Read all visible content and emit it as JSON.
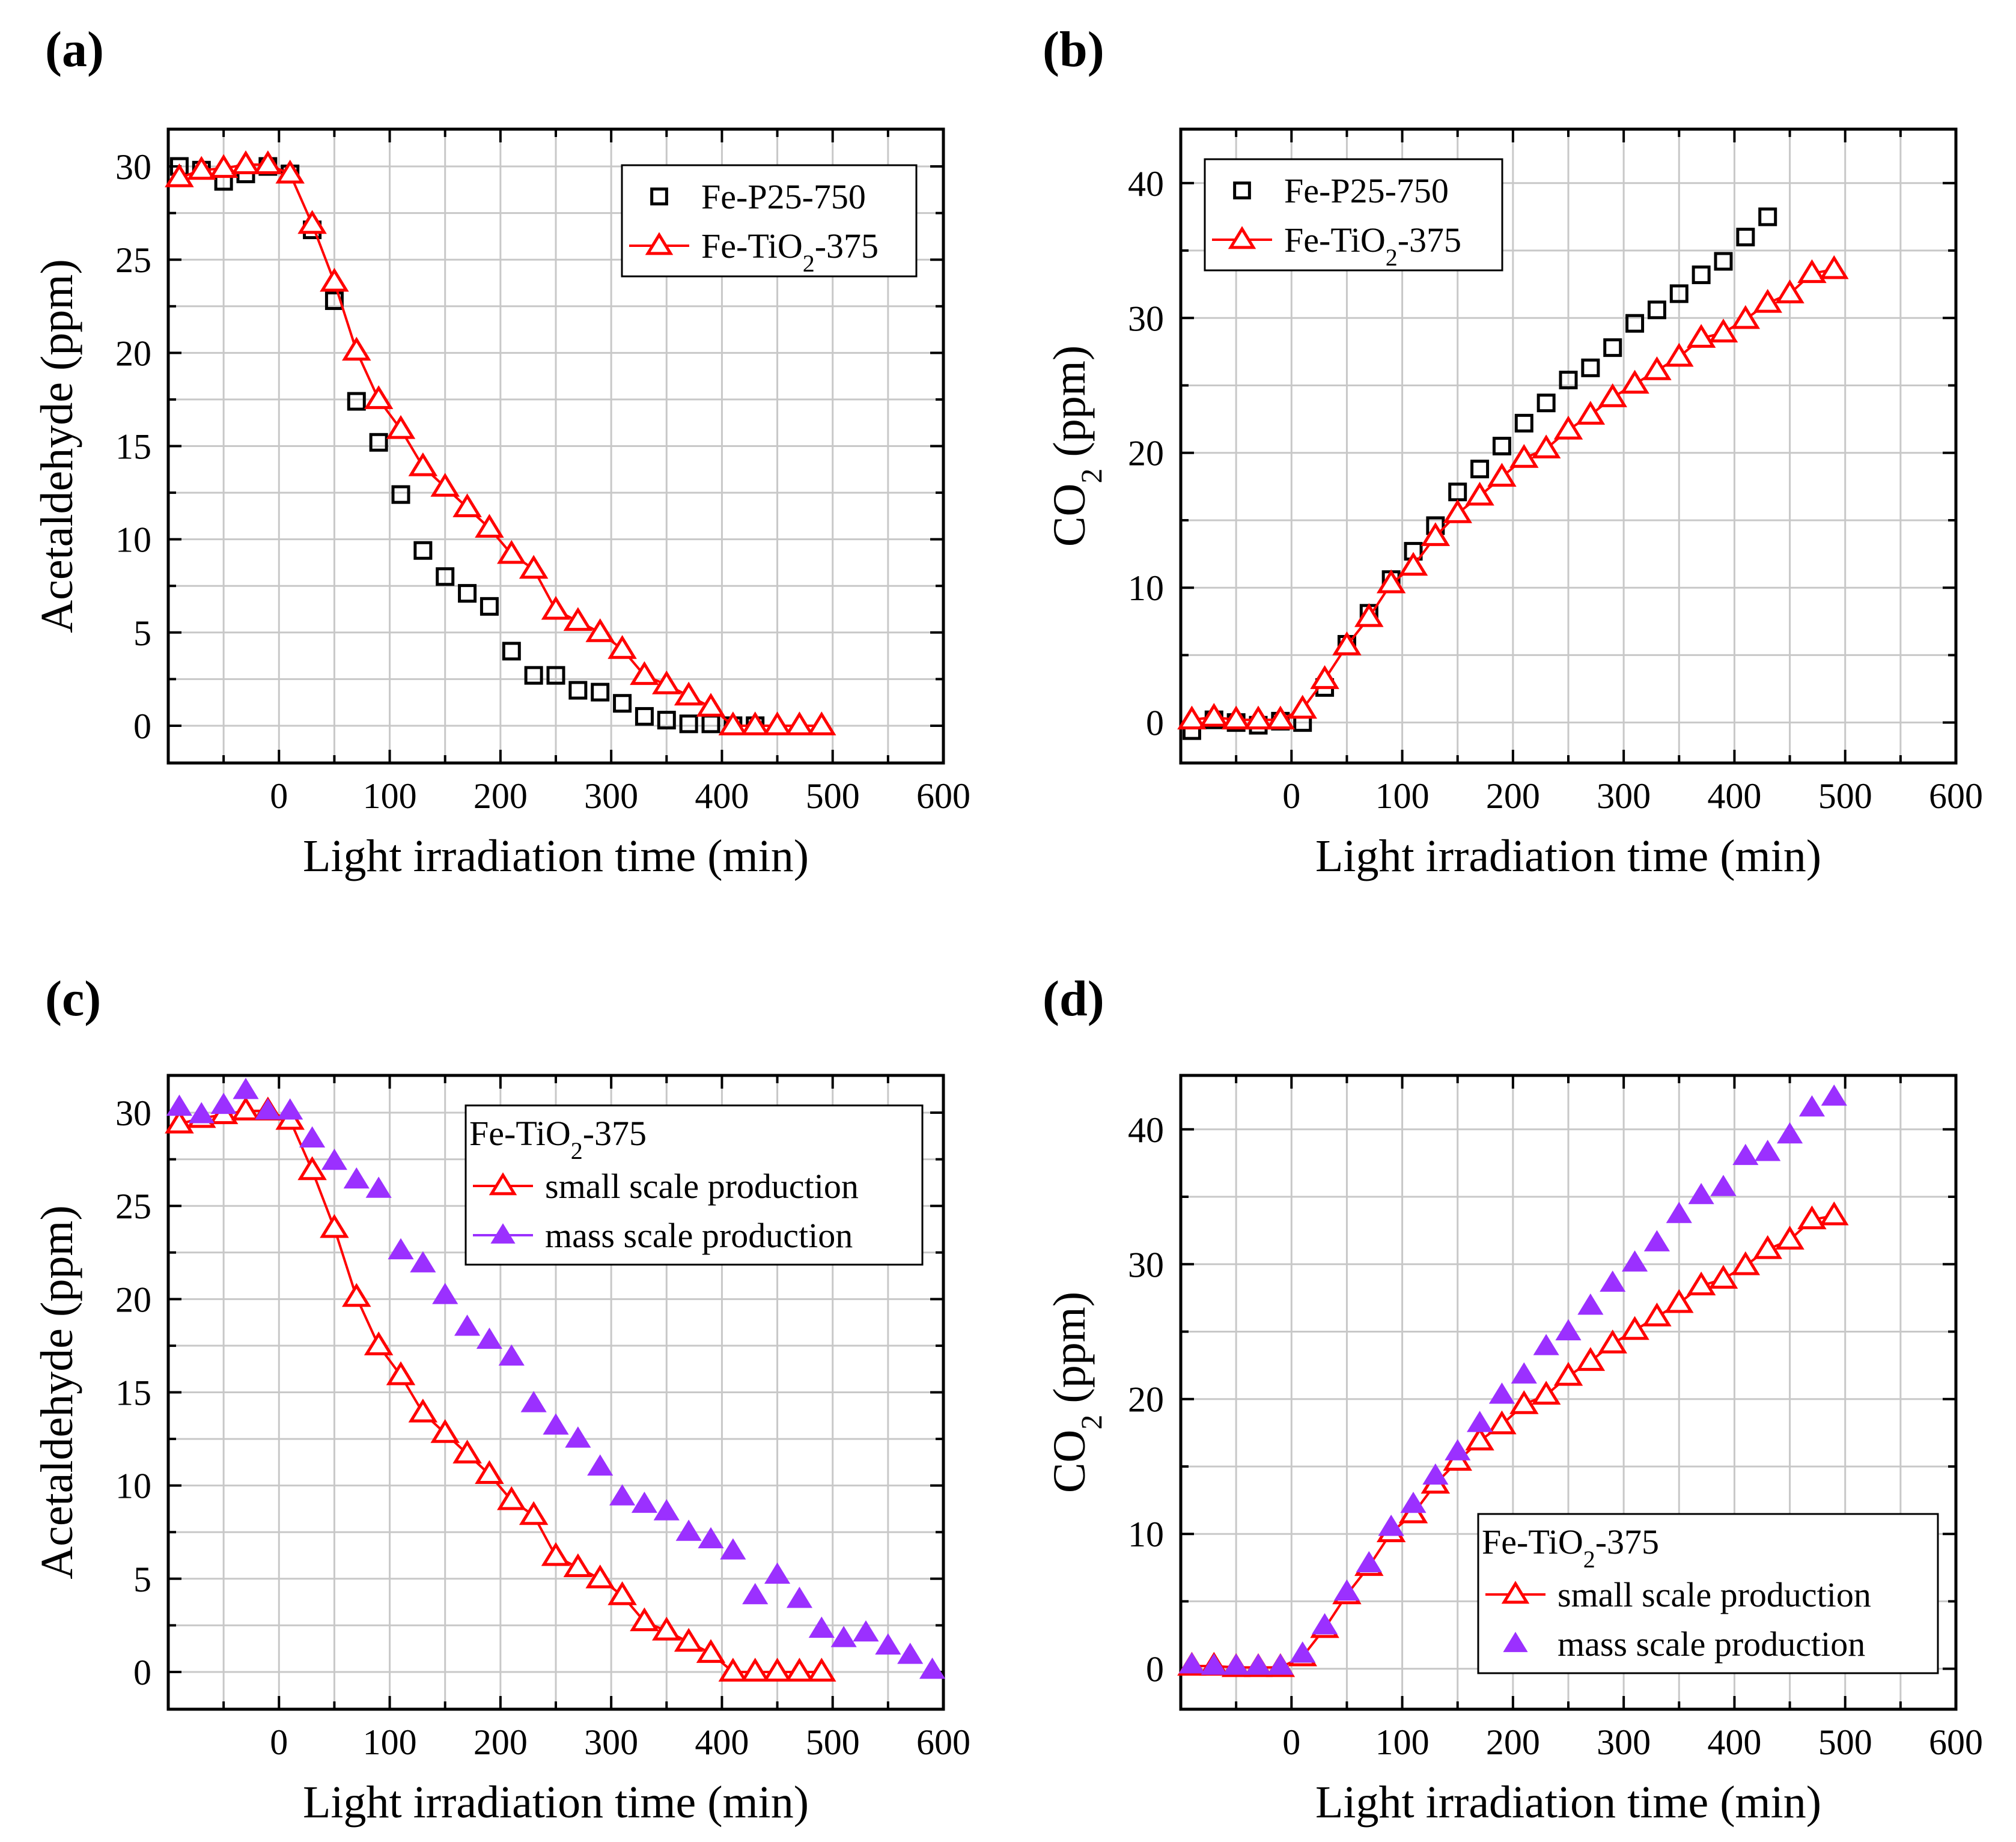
{
  "chart_data": [
    {
      "id": "a",
      "panel_label": "(a)",
      "type": "scatter",
      "xlabel": "Light irradiation time (min)",
      "ylabel": "Acetaldehyde (ppm)",
      "xlim": [
        -100,
        600
      ],
      "ylim": [
        -2,
        32
      ],
      "xticks": [
        0,
        100,
        200,
        300,
        400,
        500,
        600
      ],
      "yticks": [
        0,
        5,
        10,
        15,
        20,
        25,
        30
      ],
      "grid": true,
      "legend_position": "top-right",
      "series": [
        {
          "name": "Fe-P25-750",
          "label_parts": [
            "Fe-P25-750"
          ],
          "marker": "square-open",
          "color": "#000000",
          "line": false,
          "x": [
            -90,
            -70,
            -50,
            -30,
            -10,
            10,
            30,
            50,
            70,
            90,
            110,
            130,
            150,
            170,
            190,
            210,
            230,
            250,
            270,
            290,
            310,
            330,
            350,
            370,
            390,
            410,
            430
          ],
          "y": [
            30.0,
            29.8,
            29.2,
            29.6,
            30.0,
            29.6,
            26.6,
            22.8,
            17.4,
            15.2,
            12.4,
            9.4,
            8.0,
            7.1,
            6.4,
            4.0,
            2.7,
            2.7,
            1.9,
            1.8,
            1.2,
            0.5,
            0.3,
            0.1,
            0.1,
            0.0,
            0.0
          ]
        },
        {
          "name": "Fe-TiO2-375",
          "label_parts": [
            "Fe-TiO",
            "2",
            "-375"
          ],
          "marker": "triangle-open",
          "color": "#ff0000",
          "line": true,
          "x": [
            -90,
            -70,
            -50,
            -30,
            -10,
            10,
            30,
            50,
            70,
            90,
            110,
            130,
            150,
            170,
            190,
            210,
            230,
            250,
            270,
            290,
            310,
            330,
            350,
            370,
            390,
            410,
            430,
            450,
            470,
            490
          ],
          "y": [
            29.4,
            29.8,
            29.9,
            30.1,
            30.1,
            29.6,
            26.9,
            23.8,
            20.1,
            17.5,
            15.9,
            13.9,
            12.8,
            11.7,
            10.6,
            9.2,
            8.4,
            6.2,
            5.6,
            5.0,
            4.1,
            2.7,
            2.2,
            1.6,
            1.0,
            0.0,
            0.0,
            0.0,
            0.0,
            0.0
          ]
        }
      ]
    },
    {
      "id": "b",
      "panel_label": "(b)",
      "type": "scatter",
      "xlabel": "Light irradiation time (min)",
      "ylabel": "CO2 (ppm)",
      "ylabel_parts": [
        "CO",
        "2",
        " (ppm)"
      ],
      "xlim": [
        -100,
        600
      ],
      "ylim": [
        -3,
        44
      ],
      "xticks": [
        0,
        100,
        200,
        300,
        400,
        500,
        600
      ],
      "yticks": [
        0,
        10,
        20,
        30,
        40
      ],
      "grid": true,
      "legend_position": "top-left",
      "series": [
        {
          "name": "Fe-P25-750",
          "label_parts": [
            "Fe-P25-750"
          ],
          "marker": "square-open",
          "color": "#000000",
          "line": false,
          "x": [
            -90,
            -70,
            -50,
            -30,
            -10,
            10,
            30,
            50,
            70,
            90,
            110,
            130,
            150,
            170,
            190,
            210,
            230,
            250,
            270,
            290,
            310,
            330,
            350,
            370,
            390,
            410,
            430
          ],
          "y": [
            -0.6,
            0.2,
            0.0,
            -0.2,
            0.1,
            0.0,
            2.6,
            5.8,
            8.1,
            10.6,
            12.7,
            14.6,
            17.1,
            18.8,
            20.5,
            22.2,
            23.7,
            25.4,
            26.3,
            27.8,
            29.6,
            30.6,
            31.8,
            33.2,
            34.2,
            36.0,
            37.5
          ]
        },
        {
          "name": "Fe-TiO2-375",
          "label_parts": [
            "Fe-TiO",
            "2",
            "-375"
          ],
          "marker": "triangle-open",
          "color": "#ff0000",
          "line": true,
          "x": [
            -90,
            -70,
            -50,
            -30,
            -10,
            10,
            30,
            50,
            70,
            90,
            110,
            130,
            150,
            170,
            190,
            210,
            230,
            250,
            270,
            290,
            310,
            330,
            350,
            370,
            390,
            410,
            430,
            450,
            470,
            490
          ],
          "y": [
            0.2,
            0.4,
            0.2,
            0.2,
            0.2,
            1.0,
            3.2,
            5.7,
            7.8,
            10.3,
            11.6,
            13.8,
            15.5,
            16.8,
            18.2,
            19.6,
            20.3,
            21.7,
            22.8,
            24.1,
            25.1,
            26.1,
            27.1,
            28.5,
            28.9,
            29.9,
            31.1,
            31.8,
            33.3,
            33.6
          ]
        }
      ]
    },
    {
      "id": "c",
      "panel_label": "(c)",
      "type": "scatter",
      "xlabel": "Light irradiation time (min)",
      "ylabel": "Acetaldehyde (ppm)",
      "xlim": [
        -100,
        600
      ],
      "ylim": [
        -2,
        32
      ],
      "xticks": [
        0,
        100,
        200,
        300,
        400,
        500,
        600
      ],
      "yticks": [
        0,
        5,
        10,
        15,
        20,
        25,
        30
      ],
      "grid": true,
      "legend_position": "top-right",
      "legend_title": "Fe-TiO2-375",
      "legend_title_parts": [
        "Fe-TiO",
        "2",
        "-375"
      ],
      "series": [
        {
          "name": "small scale production",
          "label_parts": [
            "small scale production"
          ],
          "marker": "triangle-open",
          "color": "#ff0000",
          "line": true,
          "x": [
            -90,
            -70,
            -50,
            -30,
            -10,
            10,
            30,
            50,
            70,
            90,
            110,
            130,
            150,
            170,
            190,
            210,
            230,
            250,
            270,
            290,
            310,
            330,
            350,
            370,
            390,
            410,
            430,
            450,
            470,
            490
          ],
          "y": [
            29.4,
            29.7,
            29.9,
            30.1,
            30.1,
            29.6,
            26.9,
            23.8,
            20.1,
            17.5,
            15.9,
            13.9,
            12.8,
            11.7,
            10.6,
            9.2,
            8.4,
            6.2,
            5.6,
            5.0,
            4.1,
            2.7,
            2.2,
            1.6,
            1.0,
            0.0,
            0.0,
            0.0,
            0.0,
            0.0
          ]
        },
        {
          "name": "mass scale production",
          "label_parts": [
            "mass scale production"
          ],
          "marker": "triangle-filled",
          "color": "#9b30ff",
          "line": false,
          "legend_line": true,
          "x": [
            -90,
            -70,
            -50,
            -30,
            -10,
            10,
            30,
            50,
            70,
            90,
            110,
            130,
            150,
            170,
            190,
            210,
            230,
            250,
            270,
            290,
            310,
            330,
            350,
            370,
            390,
            410,
            430,
            450,
            470,
            490,
            510,
            530,
            550,
            570,
            590
          ],
          "y": [
            30.3,
            29.9,
            30.4,
            31.2,
            30.1,
            30.1,
            28.6,
            27.4,
            26.4,
            25.9,
            22.6,
            21.9,
            20.2,
            18.5,
            17.8,
            16.9,
            14.4,
            13.2,
            12.5,
            11.0,
            9.4,
            9.0,
            8.6,
            7.5,
            7.1,
            6.5,
            4.1,
            5.2,
            3.9,
            2.3,
            1.8,
            2.1,
            1.4,
            0.9,
            0.1
          ]
        }
      ]
    },
    {
      "id": "d",
      "panel_label": "(d)",
      "type": "scatter",
      "xlabel": "Light irradiation time (min)",
      "ylabel": "CO2 (ppm)",
      "ylabel_parts": [
        "CO",
        "2",
        " (ppm)"
      ],
      "xlim": [
        -100,
        600
      ],
      "ylim": [
        -3,
        44
      ],
      "xticks": [
        0,
        100,
        200,
        300,
        400,
        500,
        600
      ],
      "yticks": [
        0,
        10,
        20,
        30,
        40
      ],
      "grid": true,
      "legend_position": "bottom-right",
      "legend_title": "Fe-TiO2-375",
      "legend_title_parts": [
        "Fe-TiO",
        "2",
        "-375"
      ],
      "series": [
        {
          "name": "small scale production",
          "label_parts": [
            "small scale production"
          ],
          "marker": "triangle-open",
          "color": "#ff0000",
          "line": true,
          "x": [
            -90,
            -70,
            -50,
            -30,
            -10,
            10,
            30,
            50,
            70,
            90,
            110,
            130,
            150,
            170,
            190,
            210,
            230,
            250,
            270,
            290,
            310,
            330,
            350,
            370,
            390,
            410,
            430,
            450,
            470,
            490
          ],
          "y": [
            0.2,
            0.2,
            0.1,
            0.1,
            0.1,
            0.9,
            3.0,
            5.5,
            7.6,
            10.1,
            11.5,
            13.7,
            15.4,
            16.9,
            18.1,
            19.6,
            20.3,
            21.7,
            22.8,
            24.1,
            25.1,
            26.1,
            27.1,
            28.4,
            28.9,
            29.9,
            31.1,
            31.8,
            33.3,
            33.6
          ]
        },
        {
          "name": "mass scale production",
          "label_parts": [
            "mass scale production"
          ],
          "marker": "triangle-filled",
          "color": "#9b30ff",
          "line": false,
          "legend_line": false,
          "x": [
            -90,
            -70,
            -50,
            -30,
            -10,
            10,
            30,
            50,
            70,
            90,
            110,
            130,
            150,
            170,
            190,
            210,
            230,
            250,
            270,
            290,
            310,
            330,
            350,
            370,
            390,
            410,
            430,
            450,
            470,
            490
          ],
          "y": [
            0.3,
            0.2,
            0.2,
            0.2,
            0.2,
            1.1,
            3.2,
            5.7,
            7.8,
            10.5,
            12.2,
            14.3,
            16.1,
            18.2,
            20.3,
            21.8,
            23.9,
            25.0,
            26.9,
            28.6,
            30.1,
            31.6,
            33.7,
            35.1,
            35.7,
            38.0,
            38.3,
            39.6,
            41.6,
            42.4
          ]
        }
      ]
    }
  ]
}
